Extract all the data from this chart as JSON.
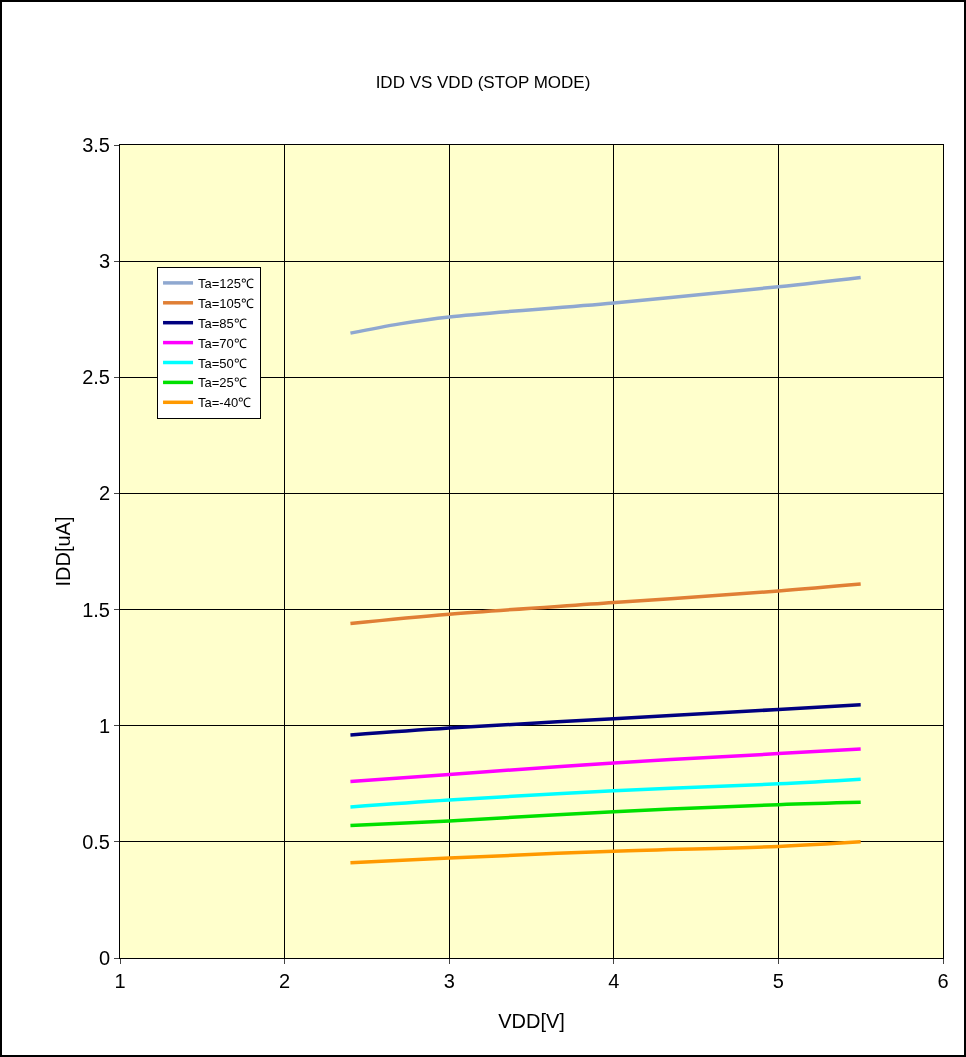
{
  "chart_data": {
    "type": "line",
    "title": "IDD VS VDD (STOP MODE)",
    "xlabel": "VDD[V]",
    "ylabel": "IDD[uA]",
    "x": [
      2.4,
      3,
      4,
      5,
      5.5
    ],
    "series": [
      {
        "name": "Ta=125℃",
        "color": "#8fa8d0",
        "x": [
          2.4,
          2.7,
          3,
          4,
          5,
          5.5
        ],
        "values": [
          2.69,
          2.73,
          2.76,
          2.82,
          2.89,
          2.93
        ]
      },
      {
        "name": "Ta=105℃",
        "color": "#e07f35",
        "values": [
          1.44,
          1.48,
          1.53,
          1.58,
          1.61
        ]
      },
      {
        "name": "Ta=85℃",
        "color": "#00007f",
        "values": [
          0.96,
          0.99,
          1.03,
          1.07,
          1.09
        ]
      },
      {
        "name": "Ta=70℃",
        "color": "#ff00ff",
        "values": [
          0.76,
          0.79,
          0.84,
          0.88,
          0.9
        ]
      },
      {
        "name": "Ta=50℃",
        "color": "#00ffff",
        "values": [
          0.65,
          0.68,
          0.72,
          0.75,
          0.77
        ]
      },
      {
        "name": "Ta=25℃",
        "color": "#00e000",
        "values": [
          0.57,
          0.59,
          0.63,
          0.66,
          0.67
        ]
      },
      {
        "name": "Ta=-40℃",
        "color": "#ff9900",
        "values": [
          0.41,
          0.43,
          0.46,
          0.48,
          0.5
        ]
      }
    ],
    "xlim": [
      1,
      6
    ],
    "xticks": [
      1,
      2,
      3,
      4,
      5,
      6
    ],
    "ylim": [
      0,
      3.5
    ],
    "yticks": [
      0,
      0.5,
      1,
      1.5,
      2,
      2.5,
      3,
      3.5
    ],
    "grid": true,
    "legend": "top left",
    "marker": "none",
    "line_style": "solid"
  }
}
